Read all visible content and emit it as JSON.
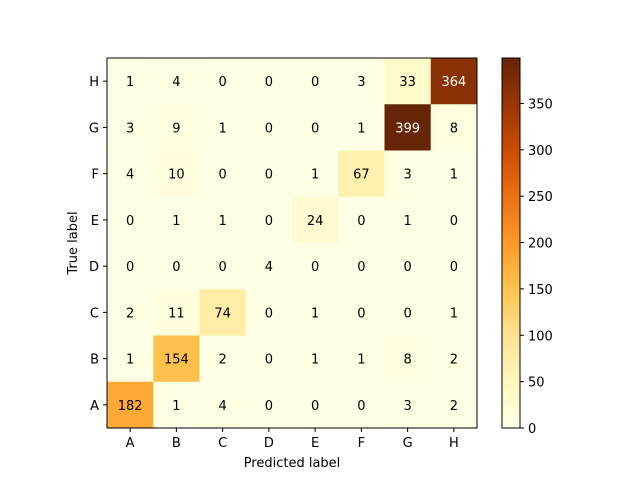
{
  "chart_data": {
    "type": "heatmap",
    "title": "",
    "xlabel": "Predicted label",
    "ylabel": "True label",
    "x_categories": [
      "A",
      "B",
      "C",
      "D",
      "E",
      "F",
      "G",
      "H"
    ],
    "y_categories": [
      "H",
      "G",
      "F",
      "E",
      "D",
      "C",
      "B",
      "A"
    ],
    "values": [
      [
        1,
        4,
        0,
        0,
        0,
        3,
        33,
        364
      ],
      [
        3,
        9,
        1,
        0,
        0,
        1,
        399,
        8
      ],
      [
        4,
        10,
        0,
        0,
        1,
        67,
        3,
        1
      ],
      [
        0,
        1,
        1,
        0,
        24,
        0,
        1,
        0
      ],
      [
        0,
        0,
        0,
        4,
        0,
        0,
        0,
        0
      ],
      [
        2,
        11,
        74,
        0,
        1,
        0,
        0,
        1
      ],
      [
        1,
        154,
        2,
        0,
        1,
        1,
        8,
        2
      ],
      [
        182,
        1,
        4,
        0,
        0,
        0,
        3,
        2
      ]
    ],
    "colormap": "YlOrBr",
    "color_range": [
      0,
      399
    ],
    "colorbar_ticks": [
      0,
      50,
      100,
      150,
      200,
      250,
      300,
      350
    ],
    "grid": false
  }
}
